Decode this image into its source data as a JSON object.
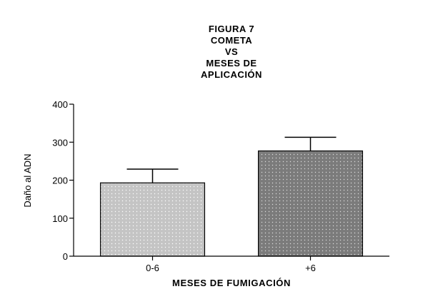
{
  "chart_data": {
    "type": "bar",
    "title_lines": [
      "FIGURA 7",
      "COMETA",
      "VS",
      "MESES DE",
      "APLICACIÓN"
    ],
    "categories": [
      "0-6",
      "+6"
    ],
    "values": [
      193,
      277
    ],
    "error_upper": [
      229,
      313
    ],
    "ylabel": "Daño al ADN",
    "xlabel": "MESES DE FUMIGACIÓN",
    "ylim": [
      0,
      400
    ],
    "yticks": [
      0,
      100,
      200,
      300,
      400
    ],
    "grid": false,
    "bar_colors": [
      "#c4c4c4",
      "#7b7b7b"
    ],
    "bar_pattern": "dotted"
  }
}
